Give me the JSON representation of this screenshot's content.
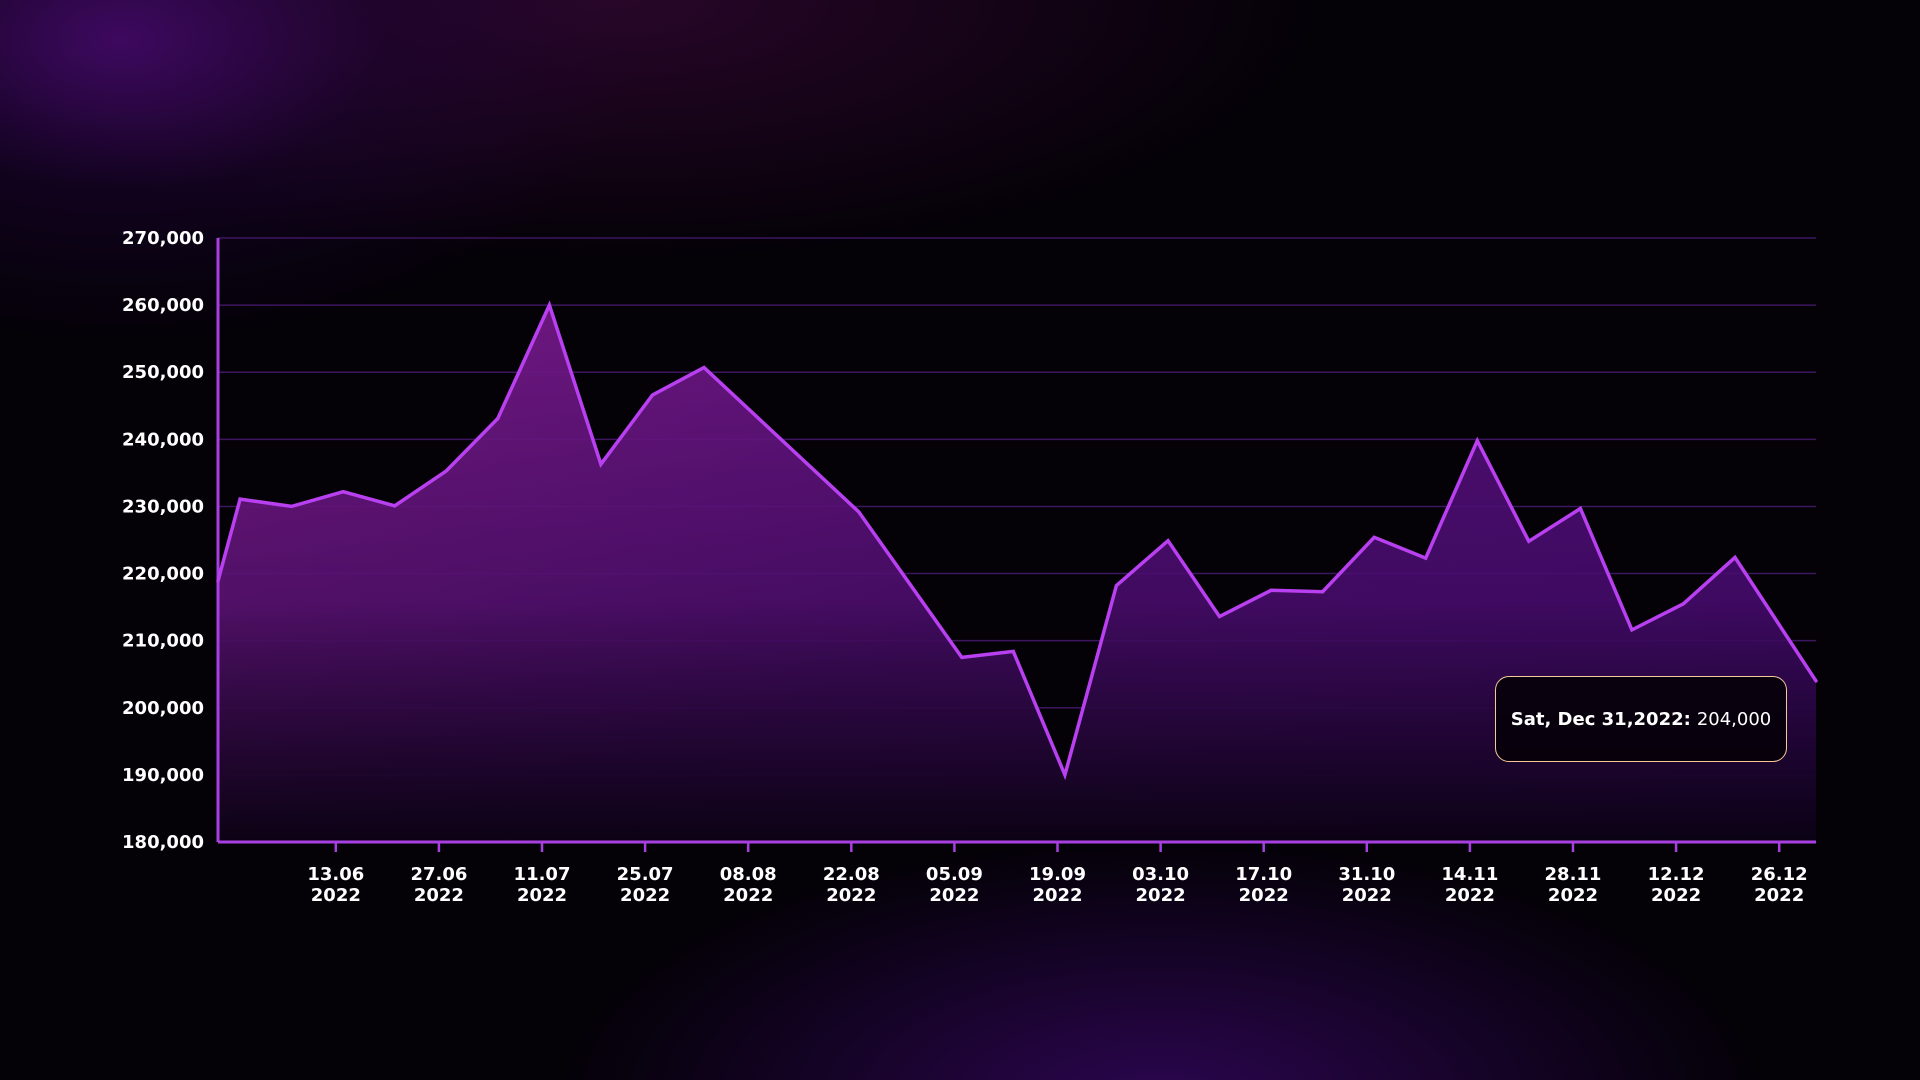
{
  "chart_data": {
    "type": "area",
    "title": "",
    "xlabel": "",
    "ylabel": "",
    "ylim": [
      180000,
      270000
    ],
    "yticks": [
      "180,000",
      "190,000",
      "200,000",
      "210,000",
      "220,000",
      "230,000",
      "240,000",
      "250,000",
      "260,000",
      "270,000"
    ],
    "x_start": "2022-05-28",
    "x_end": "2022-12-31",
    "xticks": [
      {
        "date": "2022-06-13",
        "day": "13.06",
        "year": "2022"
      },
      {
        "date": "2022-06-27",
        "day": "27.06",
        "year": "2022"
      },
      {
        "date": "2022-07-11",
        "day": "11.07",
        "year": "2022"
      },
      {
        "date": "2022-07-25",
        "day": "25.07",
        "year": "2022"
      },
      {
        "date": "2022-08-08",
        "day": "08.08",
        "year": "2022"
      },
      {
        "date": "2022-08-22",
        "day": "22.08",
        "year": "2022"
      },
      {
        "date": "2022-09-05",
        "day": "05.09",
        "year": "2022"
      },
      {
        "date": "2022-09-19",
        "day": "19.09",
        "year": "2022"
      },
      {
        "date": "2022-10-03",
        "day": "03.10",
        "year": "2022"
      },
      {
        "date": "2022-10-17",
        "day": "17.10",
        "year": "2022"
      },
      {
        "date": "2022-10-31",
        "day": "31.10",
        "year": "2022"
      },
      {
        "date": "2022-11-14",
        "day": "14.11",
        "year": "2022"
      },
      {
        "date": "2022-11-28",
        "day": "28.11",
        "year": "2022"
      },
      {
        "date": "2022-12-12",
        "day": "12.12",
        "year": "2022"
      },
      {
        "date": "2022-12-26",
        "day": "26.12",
        "year": "2022"
      }
    ],
    "series": [
      {
        "points": [
          {
            "x": "2022-05-28",
            "y": 218900
          },
          {
            "x": "2022-05-31",
            "y": 231100
          },
          {
            "x": "2022-06-07",
            "y": 230000
          },
          {
            "x": "2022-06-14",
            "y": 232200
          },
          {
            "x": "2022-06-21",
            "y": 230100
          },
          {
            "x": "2022-06-28",
            "y": 235300
          },
          {
            "x": "2022-07-05",
            "y": 243100
          },
          {
            "x": "2022-07-12",
            "y": 260000
          },
          {
            "x": "2022-07-19",
            "y": 236300
          },
          {
            "x": "2022-07-26",
            "y": 246600
          },
          {
            "x": "2022-08-02",
            "y": 250700
          },
          {
            "x": "2022-08-23",
            "y": 229200
          },
          {
            "x": "2022-09-06",
            "y": 207500
          },
          {
            "x": "2022-09-13",
            "y": 208400
          },
          {
            "x": "2022-09-20",
            "y": 190000
          },
          {
            "x": "2022-09-27",
            "y": 218200
          },
          {
            "x": "2022-10-04",
            "y": 224900
          },
          {
            "x": "2022-10-11",
            "y": 213600
          },
          {
            "x": "2022-10-18",
            "y": 217500
          },
          {
            "x": "2022-10-25",
            "y": 217300
          },
          {
            "x": "2022-11-01",
            "y": 225400
          },
          {
            "x": "2022-11-08",
            "y": 222300
          },
          {
            "x": "2022-11-15",
            "y": 239800
          },
          {
            "x": "2022-11-22",
            "y": 224800
          },
          {
            "x": "2022-11-29",
            "y": 229700
          },
          {
            "x": "2022-12-06",
            "y": 211600
          },
          {
            "x": "2022-12-13",
            "y": 215500
          },
          {
            "x": "2022-12-20",
            "y": 222400
          },
          {
            "x": "2022-12-31",
            "y": 204000
          }
        ]
      }
    ],
    "tooltip": {
      "date_label": "Sat, Dec 31,2022:",
      "value_label": "204,000"
    },
    "grid": true,
    "colors": {
      "line": "#b940f0",
      "axis": "#a83fe0",
      "grid": "#3d1660",
      "fill_top": "#7a1b88",
      "fill_bottom": "#4a0a80",
      "tooltip_border": "#f5c999"
    }
  }
}
